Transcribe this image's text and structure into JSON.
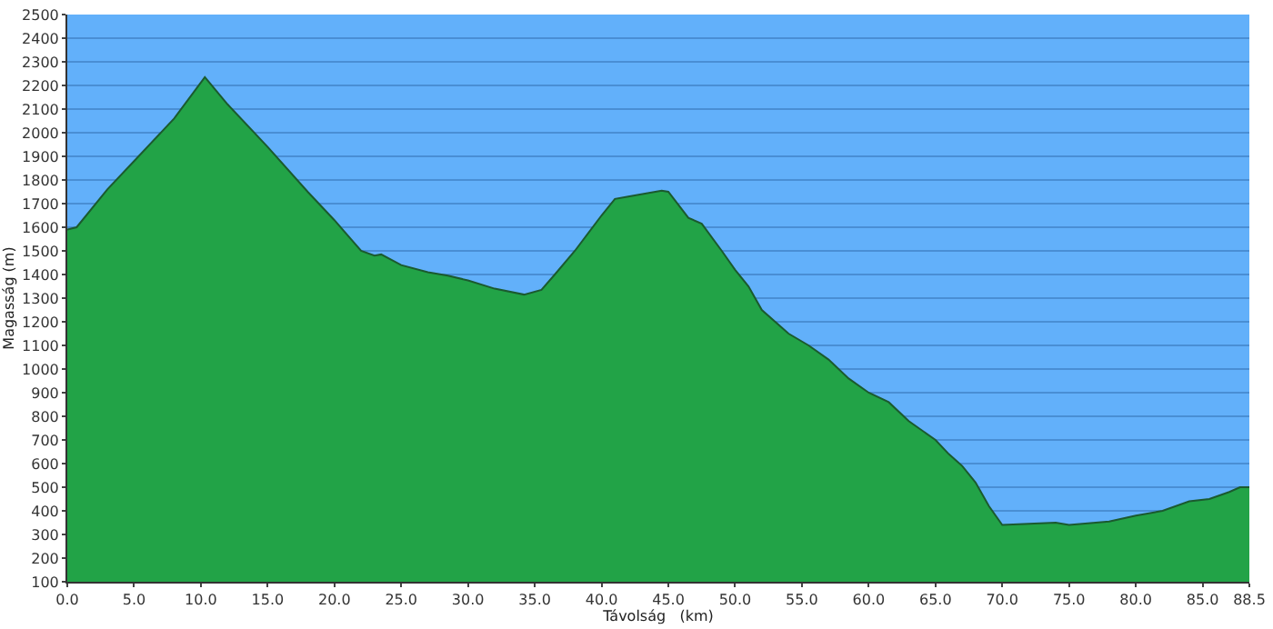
{
  "chart_data": {
    "type": "area",
    "xlabel": "Távolság   (km)",
    "ylabel": "Magasság (m)",
    "x": [
      0,
      0.7,
      3,
      5,
      8,
      10.3,
      12,
      15,
      18,
      20,
      22,
      23,
      23.5,
      25,
      27,
      28.5,
      30,
      32,
      34.2,
      35.5,
      36.5,
      38,
      40,
      41,
      42,
      44.5,
      45,
      46.5,
      47.5,
      49,
      50,
      51,
      52,
      54,
      55.5,
      57,
      58.5,
      60,
      61.5,
      63,
      65,
      66,
      67,
      68,
      69,
      70,
      72,
      74,
      75,
      78,
      80,
      82,
      84,
      85.5,
      87,
      87.8,
      88.5
    ],
    "series": [
      {
        "color": "#22a347",
        "values": [
          1590,
          1600,
          1760,
          1880,
          2060,
          2235,
          2120,
          1940,
          1750,
          1630,
          1500,
          1480,
          1485,
          1440,
          1410,
          1395,
          1375,
          1340,
          1315,
          1335,
          1400,
          1500,
          1650,
          1720,
          1730,
          1755,
          1750,
          1640,
          1615,
          1500,
          1420,
          1350,
          1250,
          1150,
          1100,
          1040,
          960,
          900,
          860,
          780,
          700,
          640,
          590,
          520,
          420,
          340,
          345,
          350,
          340,
          355,
          380,
          400,
          440,
          450,
          480,
          500,
          500
        ]
      }
    ],
    "xlim": [
      0,
      88.5
    ],
    "ylim": [
      100,
      2500
    ],
    "xticks": [
      {
        "value": 0,
        "label": "0.0"
      },
      {
        "value": 5,
        "label": "5.0"
      },
      {
        "value": 10,
        "label": "10.0"
      },
      {
        "value": 15,
        "label": "15.0"
      },
      {
        "value": 20,
        "label": "20.0"
      },
      {
        "value": 25,
        "label": "25.0"
      },
      {
        "value": 30,
        "label": "30.0"
      },
      {
        "value": 35,
        "label": "35.0"
      },
      {
        "value": 40,
        "label": "40.0"
      },
      {
        "value": 45,
        "label": "45.0"
      },
      {
        "value": 50,
        "label": "50.0"
      },
      {
        "value": 55,
        "label": "55.0"
      },
      {
        "value": 60,
        "label": "60.0"
      },
      {
        "value": 65,
        "label": "65.0"
      },
      {
        "value": 70,
        "label": "70.0"
      },
      {
        "value": 75,
        "label": "75.0"
      },
      {
        "value": 80,
        "label": "80.0"
      },
      {
        "value": 85,
        "label": "85.0"
      },
      {
        "value": 88.5,
        "label": "88.5"
      }
    ],
    "yticks": [
      100,
      200,
      300,
      400,
      500,
      600,
      700,
      800,
      900,
      1000,
      1100,
      1200,
      1300,
      1400,
      1500,
      1600,
      1700,
      1800,
      1900,
      2000,
      2100,
      2200,
      2300,
      2400,
      2500
    ],
    "grid": "y"
  }
}
